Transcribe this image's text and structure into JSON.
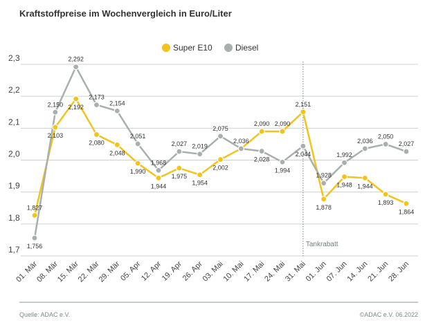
{
  "chart_data": {
    "type": "line",
    "title": "Kraftstoffpreise im Wochenvergleich in Euro/Liter",
    "categories": [
      "01. Mär",
      "08. Mär",
      "15. Mär",
      "22. Mär",
      "29. Mär",
      "05. Apr",
      "12. Apr",
      "19. Apr",
      "26. Apr",
      "03. Mai",
      "10. Mai",
      "17. Mai",
      "24. Mai",
      "31. Mai",
      "01. Jun",
      "07. Jun",
      "14. Jun",
      "21. Jun",
      "28. Jun"
    ],
    "series": [
      {
        "name": "Super E10",
        "color": "#f2c31b",
        "values": [
          1.827,
          2.103,
          2.192,
          2.08,
          2.048,
          1.99,
          1.944,
          1.975,
          1.954,
          2.002,
          2.036,
          2.09,
          2.09,
          2.151,
          1.878,
          1.948,
          1.944,
          1.893,
          1.864
        ],
        "value_labels": [
          "1,827",
          "2,103",
          "2,192",
          "2,080",
          "2,048",
          "1,990",
          "1,944",
          "1,975",
          "1,954",
          "2,002",
          null,
          "2,090",
          "2,090",
          "2,151",
          "1,878",
          "1,948",
          "1,944",
          "1,893",
          "1,864"
        ]
      },
      {
        "name": "Diesel",
        "color": "#a8afad",
        "values": [
          1.756,
          2.15,
          2.292,
          2.173,
          2.154,
          2.051,
          1.968,
          2.027,
          2.019,
          2.075,
          2.036,
          2.028,
          1.994,
          2.044,
          1.928,
          1.992,
          2.036,
          2.05,
          2.027
        ],
        "value_labels": [
          "1,756",
          "2,150",
          "2,292",
          "2,173",
          "2,154",
          "2,051",
          "1,968",
          "2,027",
          "2,019",
          "2,075",
          "2,036",
          "2,028",
          "1,994",
          "2,044",
          "1,928",
          "1,992",
          "2,036",
          "2,050",
          "2,027"
        ]
      }
    ],
    "ylim": [
      1.7,
      2.3
    ],
    "yticks": [
      {
        "value": 1.7,
        "label": "1,7"
      },
      {
        "value": 1.8,
        "label": "1,8"
      },
      {
        "value": 1.9,
        "label": "1,9"
      },
      {
        "value": 2.0,
        "label": "2,0"
      },
      {
        "value": 2.1,
        "label": "2,1"
      },
      {
        "value": 2.2,
        "label": "2,2"
      },
      {
        "value": 2.3,
        "label": "2,3"
      }
    ],
    "grid": true,
    "legend": "top",
    "annotation": {
      "text": "Tankrabatt",
      "category": "31. Mai"
    },
    "source": "Quelle: ADAC e.V.",
    "copyright": "©ADAC e.V. 06.2022"
  }
}
